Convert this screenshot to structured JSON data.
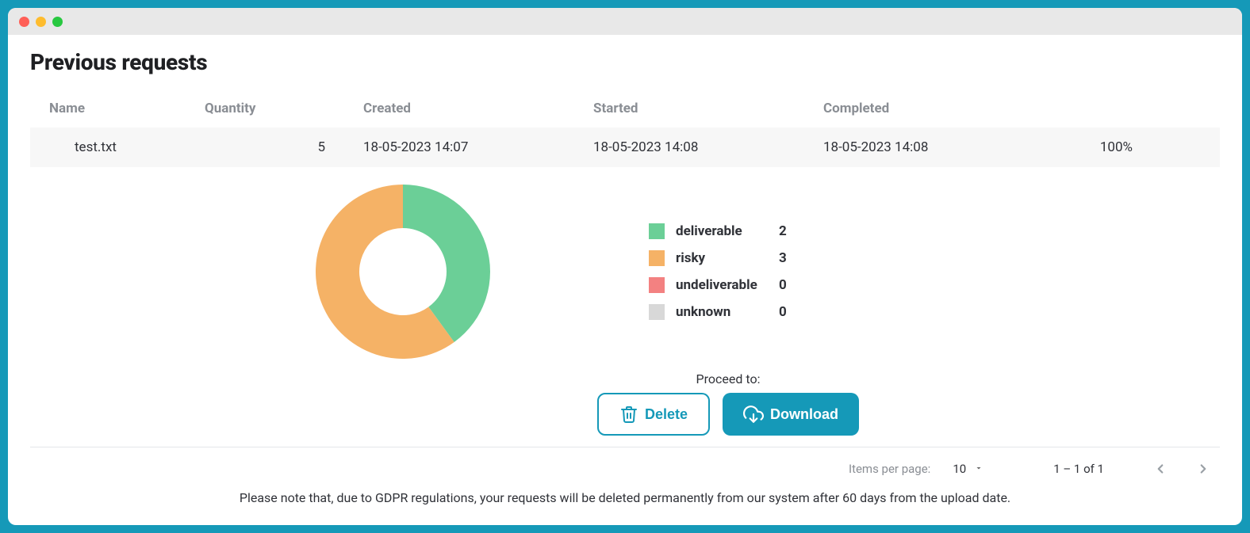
{
  "page": {
    "title": "Previous requests",
    "footer_note": "Please note that, due to GDPR regulations, your requests will be deleted permanently from our system after 60 days from the upload date."
  },
  "table": {
    "columns": {
      "name": "Name",
      "quantity": "Quantity",
      "created": "Created",
      "started": "Started",
      "completed": "Completed"
    },
    "row": {
      "name": "test.txt",
      "quantity": "5",
      "created": "18-05-2023 14:07",
      "started": "18-05-2023 14:08",
      "completed": "18-05-2023 14:08",
      "percent": "100%"
    }
  },
  "chart": {
    "type": "donut",
    "size": 220,
    "inner_radius": 55,
    "outer_radius": 110,
    "background_color": "#ffffff",
    "series": {
      "deliverable": {
        "label": "deliverable",
        "value": 2,
        "color": "#6bcf97"
      },
      "risky": {
        "label": "risky",
        "value": 3,
        "color": "#f5b266"
      },
      "undeliverable": {
        "label": "undeliverable",
        "value": 0,
        "color": "#f38181"
      },
      "unknown": {
        "label": "unknown",
        "value": 0,
        "color": "#d8d8d8"
      }
    }
  },
  "actions": {
    "proceed_label": "Proceed to:",
    "delete_label": "Delete",
    "download_label": "Download"
  },
  "pager": {
    "items_per_page_label": "Items per page:",
    "page_size": "10",
    "range": "1 – 1 of 1"
  },
  "colors": {
    "accent": "#1599b8",
    "header_text": "#8a8e94",
    "body_text": "#303238",
    "row_bg": "#f7f7f7",
    "divider": "#e4e6e9"
  }
}
